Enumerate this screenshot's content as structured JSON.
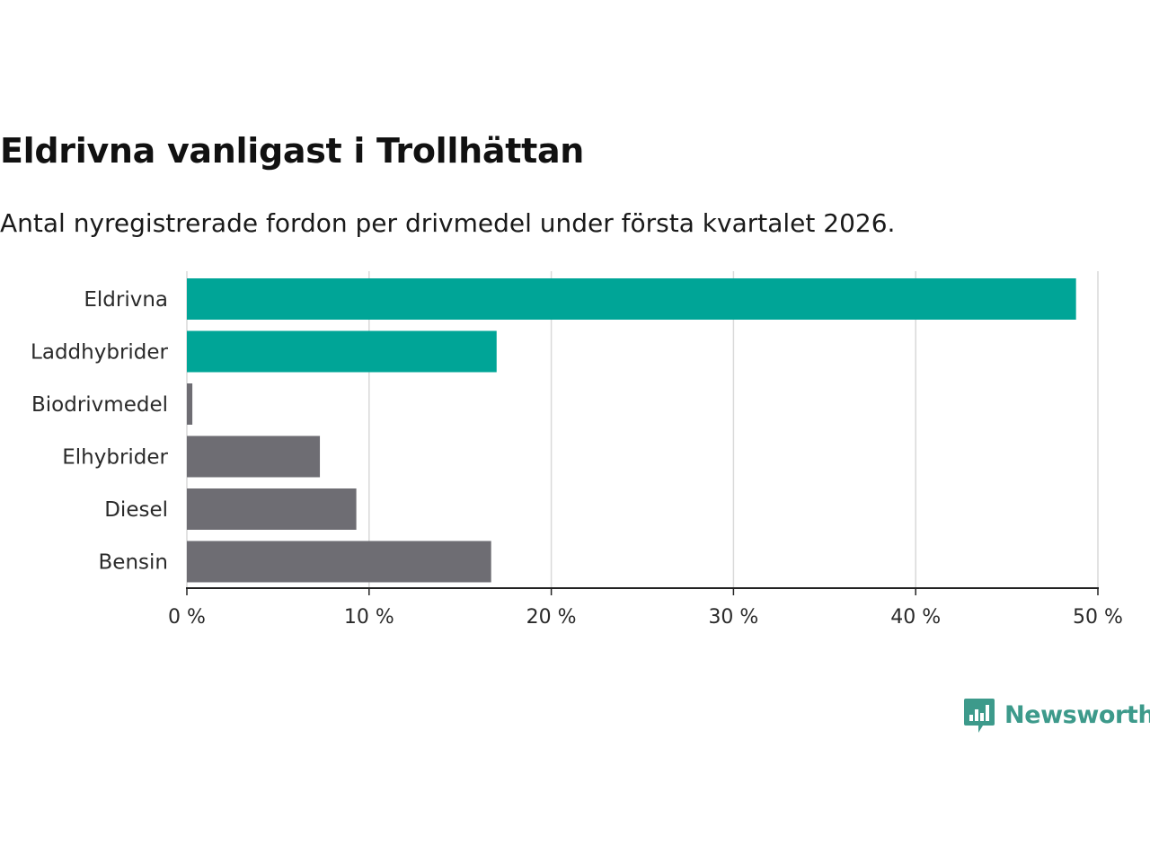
{
  "colors": {
    "highlight": "#00a597",
    "default": "#6e6d73",
    "grid": "#d9d9d9",
    "axis": "#222222",
    "brand": "#3d9a8b"
  },
  "chart_data": {
    "type": "bar",
    "orientation": "horizontal",
    "title": "Eldrivna vanligast i Trollhättan",
    "subtitle": "Antal nyregistrerade fordon per drivmedel under första kvartalet 2026.",
    "categories": [
      "Eldrivna",
      "Laddhybrider",
      "Biodrivmedel",
      "Elhybrider",
      "Diesel",
      "Bensin"
    ],
    "values": [
      48.8,
      17.0,
      0.3,
      7.3,
      9.3,
      16.7
    ],
    "highlighted": [
      true,
      true,
      false,
      false,
      false,
      false
    ],
    "xlim": [
      0,
      50
    ],
    "xticks": [
      0,
      10,
      20,
      30,
      40,
      50
    ],
    "xtick_labels": [
      "0 %",
      "10 %",
      "20 %",
      "30 %",
      "40 %",
      "50 %"
    ],
    "xlabel": "",
    "ylabel": "",
    "grid": "vertical"
  },
  "branding": {
    "logo_icon": "bar-chart-speech-bubble-icon",
    "name": "Newsworthy"
  }
}
